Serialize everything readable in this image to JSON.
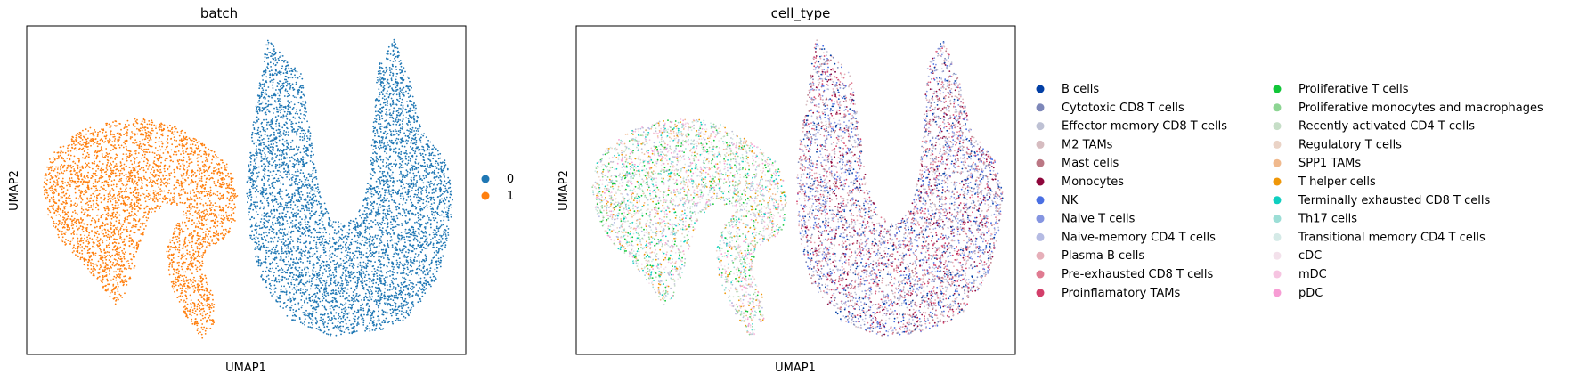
{
  "chart_data": [
    {
      "type": "scatter",
      "title": "batch",
      "xlabel": "UMAP1",
      "ylabel": "UMAP2",
      "grid": false,
      "legend_placement": "right",
      "series": [
        {
          "name": "0",
          "color": "#1f77b4",
          "regions": [
            [
              [
                3.6,
                10.0
              ],
              [
                4.5,
                8.8
              ],
              [
                4.7,
                7.0
              ],
              [
                4.9,
                5.2
              ],
              [
                5.2,
                4.2
              ],
              [
                5.6,
                3.9
              ],
              [
                6.0,
                4.5
              ],
              [
                6.2,
                5.7
              ],
              [
                6.3,
                7.4
              ],
              [
                6.4,
                9.1
              ],
              [
                6.8,
                10.0
              ],
              [
                7.2,
                8.6
              ],
              [
                7.5,
                7.0
              ],
              [
                8.1,
                6.0
              ],
              [
                8.3,
                5.0
              ],
              [
                8.2,
                3.7
              ],
              [
                7.9,
                2.2
              ],
              [
                7.2,
                0.9
              ],
              [
                6.3,
                0.4
              ],
              [
                5.2,
                0.3
              ],
              [
                4.2,
                0.8
              ],
              [
                3.5,
                2.0
              ],
              [
                3.2,
                3.5
              ],
              [
                3.1,
                5.0
              ],
              [
                3.2,
                6.6
              ],
              [
                3.4,
                8.2
              ]
            ]
          ]
        },
        {
          "name": "1",
          "color": "#ff7f0e",
          "regions": [
            [
              [
                -1.6,
                6.5
              ],
              [
                -1.0,
                7.0
              ],
              [
                -0.3,
                7.3
              ],
              [
                0.5,
                7.4
              ],
              [
                1.2,
                7.2
              ],
              [
                1.9,
                6.7
              ],
              [
                2.6,
                6.0
              ],
              [
                2.9,
                5.0
              ],
              [
                2.8,
                3.8
              ],
              [
                2.5,
                3.4
              ],
              [
                2.1,
                3.1
              ],
              [
                2.0,
                2.5
              ],
              [
                2.3,
                1.5
              ],
              [
                2.3,
                0.7
              ],
              [
                2.0,
                0.2
              ],
              [
                1.6,
                0.9
              ],
              [
                1.2,
                2.0
              ],
              [
                1.1,
                3.1
              ],
              [
                1.3,
                3.9
              ],
              [
                1.6,
                4.5
              ],
              [
                1.1,
                4.6
              ],
              [
                0.7,
                4.2
              ],
              [
                0.5,
                3.5
              ],
              [
                0.3,
                2.5
              ],
              [
                0.0,
                1.5
              ],
              [
                -0.2,
                1.3
              ],
              [
                -0.5,
                1.9
              ],
              [
                -1.1,
                2.8
              ],
              [
                -1.6,
                3.5
              ],
              [
                -1.9,
                4.3
              ],
              [
                -2.0,
                5.2
              ],
              [
                -1.9,
                5.9
              ]
            ]
          ]
        }
      ],
      "legend": [
        "0",
        "1"
      ]
    },
    {
      "type": "scatter",
      "title": "cell_type",
      "xlabel": "UMAP1",
      "ylabel": "UMAP2",
      "grid": false,
      "legend_placement": "right, two columns",
      "categories": [
        {
          "name": "B cells",
          "color": "#023fa5"
        },
        {
          "name": "Cytotoxic CD8 T cells",
          "color": "#7d87b9"
        },
        {
          "name": "Effector memory CD8 T cells",
          "color": "#bec1d4"
        },
        {
          "name": "M2 TAMs",
          "color": "#d6bcc0"
        },
        {
          "name": "Mast cells",
          "color": "#bb7784"
        },
        {
          "name": "Monocytes",
          "color": "#8e063b"
        },
        {
          "name": "NK",
          "color": "#4a6fe3"
        },
        {
          "name": "Naive T cells",
          "color": "#8595e1"
        },
        {
          "name": "Naive-memory CD4 T cells",
          "color": "#b5bbe3"
        },
        {
          "name": "Plasma B cells",
          "color": "#e6afb9"
        },
        {
          "name": "Pre-exhausted CD8 T cells",
          "color": "#e07b91"
        },
        {
          "name": "Proinflamatory TAMs",
          "color": "#d33f6a"
        },
        {
          "name": "Proliferative T cells",
          "color": "#11c638"
        },
        {
          "name": "Proliferative monocytes and macrophages",
          "color": "#8dd593"
        },
        {
          "name": "Recently activated CD4 T cells",
          "color": "#c6dec7"
        },
        {
          "name": "Regulatory T cells",
          "color": "#ead3c6"
        },
        {
          "name": "SPP1 TAMs",
          "color": "#f0b98d"
        },
        {
          "name": "T helper cells",
          "color": "#ef9708"
        },
        {
          "name": "Terminally exhausted CD8 T cells",
          "color": "#0fcfc0"
        },
        {
          "name": "Th17 cells",
          "color": "#9cded6"
        },
        {
          "name": "Transitional memory CD4 T cells",
          "color": "#d5eae7"
        },
        {
          "name": "cDC",
          "color": "#f3e1eb"
        },
        {
          "name": "mDC",
          "color": "#f6c4e1"
        },
        {
          "name": "pDC",
          "color": "#f79cd4"
        }
      ],
      "batch_0_palette": [
        "#023fa5",
        "#7d87b9",
        "#bec1d4",
        "#d6bcc0",
        "#bb7784",
        "#8e063b",
        "#4a6fe3",
        "#8595e1",
        "#b5bbe3",
        "#e6afb9",
        "#e07b91",
        "#d33f6a"
      ],
      "batch_1_palette": [
        "#11c638",
        "#8dd593",
        "#c6dec7",
        "#ead3c6",
        "#f0b98d",
        "#ef9708",
        "#0fcfc0",
        "#9cded6",
        "#d5eae7",
        "#f3e1eb",
        "#f6c4e1",
        "#f79cd4",
        "#bec1d4",
        "#b5bbe3"
      ]
    }
  ]
}
